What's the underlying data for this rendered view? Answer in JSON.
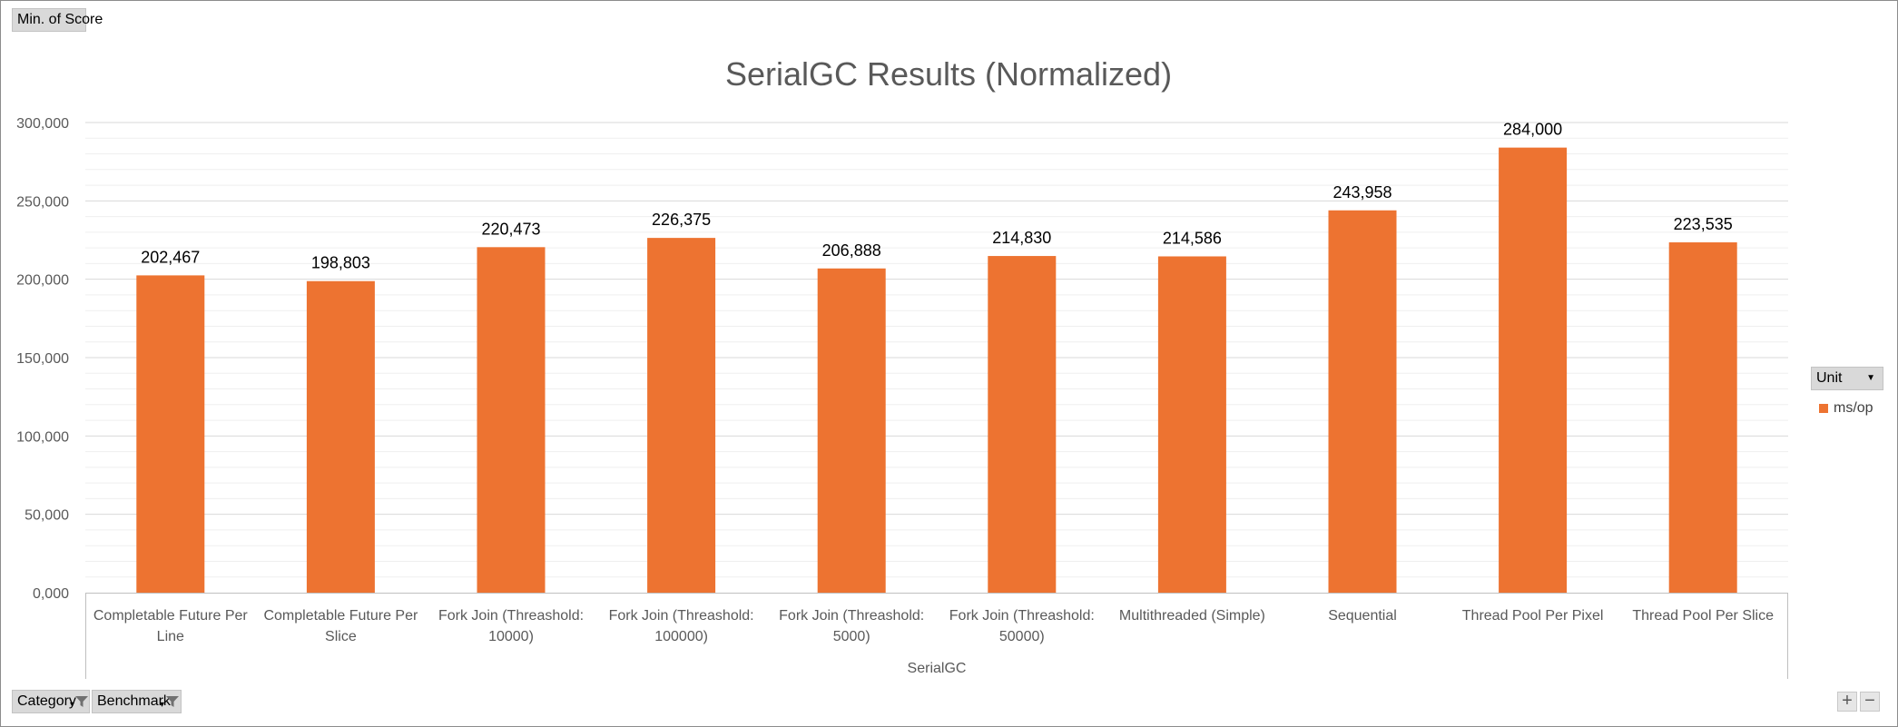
{
  "field_buttons": {
    "value_field": "Min. of Score",
    "legend_field": "Unit",
    "axis_fields": [
      "Category",
      "Benchmark"
    ]
  },
  "zoom": {
    "plus": "+",
    "minus": "−"
  },
  "colors": {
    "bar": "#ed7331",
    "grid_major": "#d9d9d9",
    "grid_minor": "#efefef"
  },
  "icons": {
    "filter": "filter-funnel-icon",
    "dropdown": "dropdown-arrow-icon"
  },
  "chart_data": {
    "type": "bar",
    "title": "SerialGC Results (Normalized)",
    "xlabel": "SerialGC",
    "ylabel": "",
    "ylim": [
      0,
      300000
    ],
    "ytick_step": 50000,
    "ytick_labels": [
      "0,000",
      "50,000",
      "100,000",
      "150,000",
      "200,000",
      "250,000",
      "300,000"
    ],
    "minor_gridlines_per_major": 5,
    "legend_position": "right",
    "categories": [
      [
        "Completable Future Per",
        "Line"
      ],
      [
        "Completable Future Per",
        "Slice"
      ],
      [
        "Fork Join (Threashold:",
        "10000)"
      ],
      [
        "Fork Join (Threashold:",
        "100000)"
      ],
      [
        "Fork Join (Threashold:",
        "5000)"
      ],
      [
        "Fork Join (Threashold:",
        "50000)"
      ],
      [
        "Multithreaded (Simple)"
      ],
      [
        "Sequential"
      ],
      [
        "Thread Pool Per Pixel"
      ],
      [
        "Thread Pool Per Slice"
      ]
    ],
    "series": [
      {
        "name": "ms/op",
        "values": [
          202467,
          198803,
          220473,
          226375,
          206888,
          214830,
          214586,
          243958,
          284000,
          223535
        ],
        "labels": [
          "202,467",
          "198,803",
          "220,473",
          "226,375",
          "206,888",
          "214,830",
          "214,586",
          "243,958",
          "284,000",
          "223,535"
        ]
      }
    ]
  }
}
